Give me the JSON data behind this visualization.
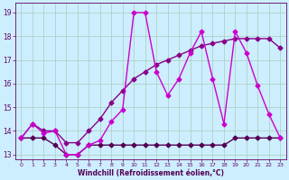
{
  "line1": {
    "x": [
      0,
      1,
      2,
      3,
      4,
      5,
      6,
      7,
      8,
      9,
      10,
      11,
      12,
      13,
      14,
      15,
      16,
      17,
      18,
      19,
      20,
      21,
      22,
      23
    ],
    "y": [
      13.7,
      14.3,
      13.9,
      14.0,
      13.0,
      13.0,
      13.4,
      13.6,
      14.4,
      14.9,
      19.0,
      19.0,
      16.5,
      15.5,
      16.2,
      17.3,
      18.2,
      16.2,
      14.3,
      18.2,
      17.3,
      15.9,
      14.7,
      13.7
    ],
    "color": "#cc00cc",
    "linewidth": 1.0,
    "marker": "D",
    "markersize": 2.5
  },
  "line2": {
    "x": [
      0,
      1,
      2,
      3,
      4,
      5,
      6,
      7,
      8,
      9,
      10,
      11,
      12,
      13,
      14,
      15,
      16,
      17,
      18,
      19,
      20,
      21,
      22,
      23
    ],
    "y": [
      13.7,
      14.3,
      14.0,
      14.0,
      13.5,
      13.5,
      14.0,
      14.5,
      15.2,
      15.7,
      16.2,
      16.5,
      16.8,
      17.0,
      17.2,
      17.4,
      17.6,
      17.7,
      17.8,
      17.9,
      17.9,
      17.9,
      17.9,
      17.5
    ],
    "color": "#880088",
    "linewidth": 1.0,
    "marker": "D",
    "markersize": 2.5
  },
  "line3": {
    "x": [
      0,
      1,
      2,
      3,
      4,
      5,
      6,
      7,
      8,
      9,
      10,
      11,
      12,
      13,
      14,
      15,
      16,
      17,
      18,
      19,
      20,
      21,
      22,
      23
    ],
    "y": [
      13.7,
      13.7,
      13.7,
      13.4,
      13.0,
      13.0,
      13.4,
      13.4,
      13.4,
      13.4,
      13.4,
      13.4,
      13.4,
      13.4,
      13.4,
      13.4,
      13.4,
      13.4,
      13.4,
      13.7,
      13.7,
      13.7,
      13.7,
      13.7
    ],
    "color": "#550055",
    "linewidth": 1.0,
    "marker": "D",
    "markersize": 2.5
  },
  "xlim": [
    -0.5,
    23.5
  ],
  "ylim": [
    12.8,
    19.4
  ],
  "yticks": [
    13,
    14,
    15,
    16,
    17,
    18,
    19
  ],
  "xticks": [
    0,
    1,
    2,
    3,
    4,
    5,
    6,
    7,
    8,
    9,
    10,
    11,
    12,
    13,
    14,
    15,
    16,
    17,
    18,
    19,
    20,
    21,
    22,
    23
  ],
  "xlabel": "Windchill (Refroidissement éolien,°C)",
  "bg_color": "#cceeff",
  "grid_color": "#aaccbb",
  "tick_color": "#660066",
  "label_color": "#550055",
  "figwidth": 3.2,
  "figheight": 2.0,
  "dpi": 100
}
